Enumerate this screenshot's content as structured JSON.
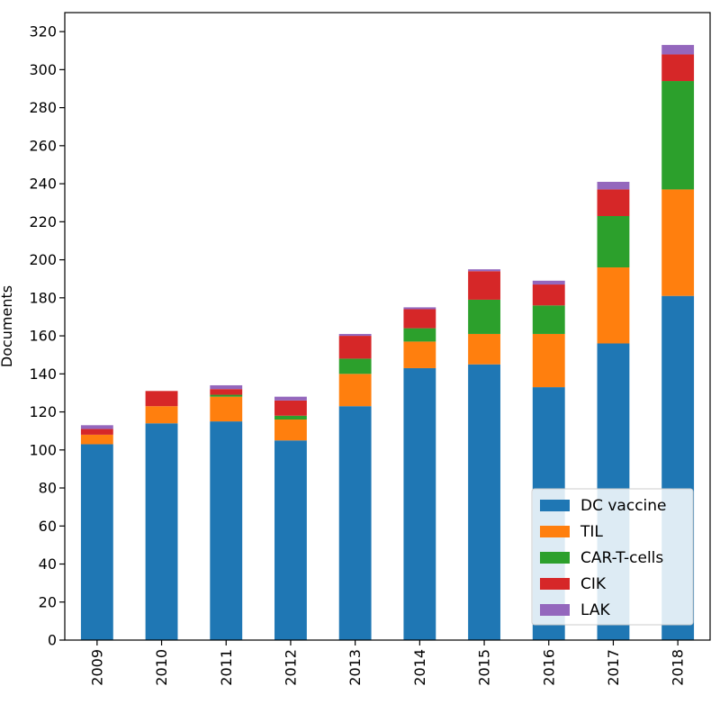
{
  "chart_data": {
    "type": "bar",
    "stacked": true,
    "title": "",
    "xlabel": "",
    "ylabel": "Documents",
    "ylim": [
      0,
      330
    ],
    "yticks": [
      0,
      20,
      40,
      60,
      80,
      100,
      120,
      140,
      160,
      180,
      200,
      220,
      240,
      260,
      280,
      300,
      320
    ],
    "categories": [
      "2009",
      "2010",
      "2011",
      "2012",
      "2013",
      "2014",
      "2015",
      "2016",
      "2017",
      "2018"
    ],
    "series": [
      {
        "name": "DC vaccine",
        "color": "#1f77b4",
        "values": [
          103,
          114,
          115,
          105,
          123,
          143,
          145,
          133,
          156,
          181
        ]
      },
      {
        "name": "TIL",
        "color": "#ff7f0e",
        "values": [
          5,
          9,
          13,
          11,
          17,
          14,
          16,
          28,
          40,
          56
        ]
      },
      {
        "name": "CAR-T-cells",
        "color": "#2ca02c",
        "values": [
          0,
          0,
          1,
          2,
          8,
          7,
          18,
          15,
          27,
          57
        ]
      },
      {
        "name": "CIK",
        "color": "#d62728",
        "values": [
          3,
          8,
          3,
          8,
          12,
          10,
          15,
          11,
          14,
          14
        ]
      },
      {
        "name": "LAK",
        "color": "#9467bd",
        "values": [
          2,
          0,
          2,
          2,
          1,
          1,
          1,
          2,
          4,
          5
        ]
      }
    ],
    "grid": false,
    "legend_position": "lower-right"
  }
}
